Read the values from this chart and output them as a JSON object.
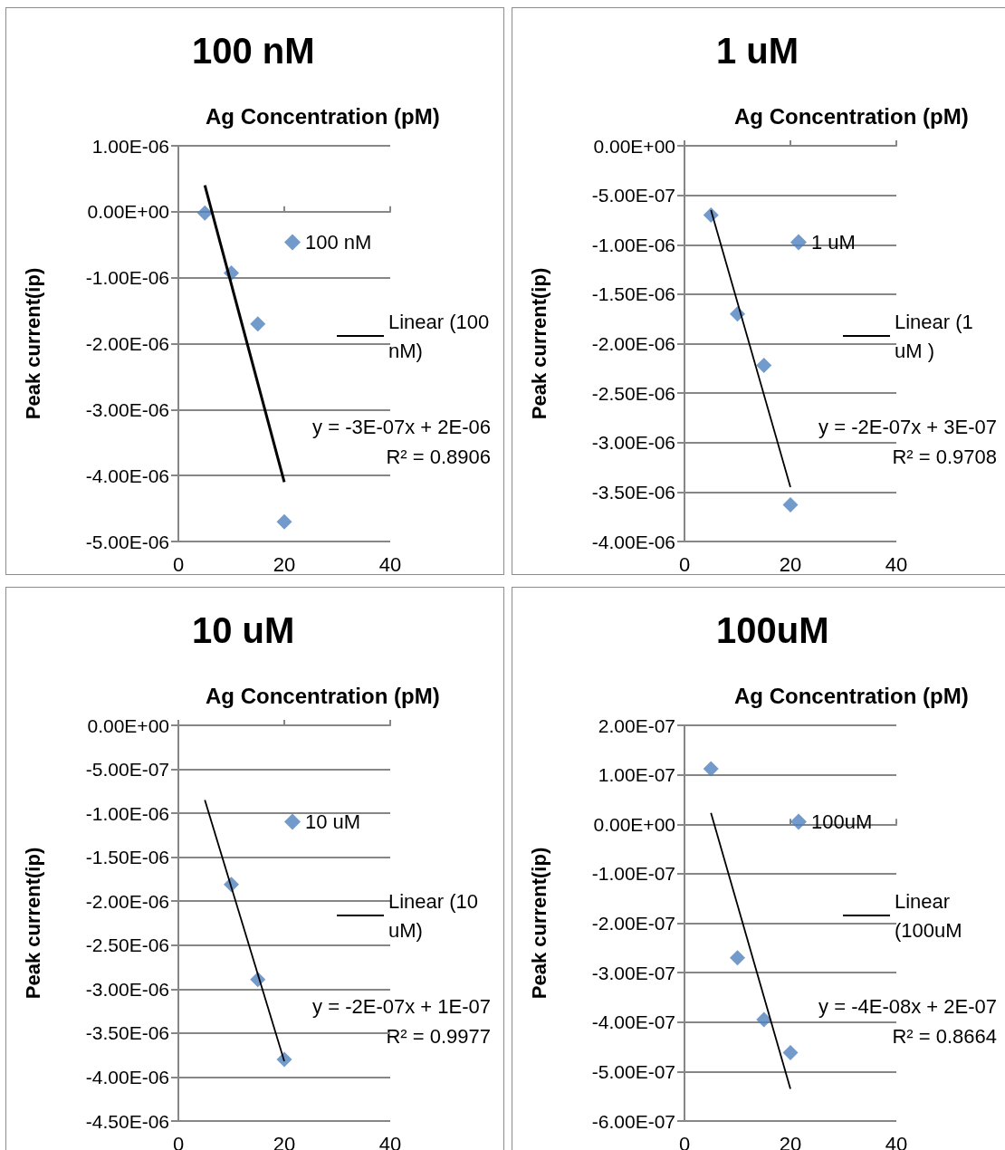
{
  "chart_data": [
    {
      "type": "scatter",
      "title": "100 nM",
      "xlabel": "Ag Concentration (pM)",
      "ylabel": "Peak current(ip)",
      "xlim": [
        0,
        40
      ],
      "xticks": [
        0,
        20,
        40
      ],
      "ylim": [
        -5e-06,
        1e-06
      ],
      "yticks": [
        {
          "value": -5e-06,
          "label": "-5.00E-06"
        },
        {
          "value": -4e-06,
          "label": "-4.00E-06"
        },
        {
          "value": -3e-06,
          "label": "-3.00E-06"
        },
        {
          "value": -2e-06,
          "label": "-2.00E-06"
        },
        {
          "value": -1e-06,
          "label": "-1.00E-06"
        },
        {
          "value": 0,
          "label": "0.00E+00"
        },
        {
          "value": 1e-06,
          "label": "1.00E-06"
        }
      ],
      "grid": "y",
      "legend": "right",
      "marker": "diamond",
      "series": [
        {
          "name": "100 nM",
          "type": "scatter",
          "color": "#4f81bd",
          "x": [
            5,
            10,
            15,
            20
          ],
          "values": [
            -2e-08,
            -9.3e-07,
            -1.7e-06,
            -4.7e-06
          ]
        },
        {
          "name": "Linear (100 nM)",
          "type": "line",
          "marker": "none",
          "color": "#000000",
          "x": [
            5,
            20
          ],
          "values": [
            4e-07,
            -4.1e-06
          ]
        }
      ],
      "annotations": [
        "y = -3E-07x + 2E-06",
        "R² = 0.8906"
      ]
    },
    {
      "type": "scatter",
      "title": "1 uM",
      "xlabel": "Ag Concentration (pM)",
      "ylabel": "Peak current(ip)",
      "xlim": [
        0,
        40
      ],
      "xticks": [
        0,
        20,
        40
      ],
      "ylim": [
        -4e-06,
        0
      ],
      "yticks": [
        {
          "value": -4e-06,
          "label": "-4.00E-06"
        },
        {
          "value": -3.5e-06,
          "label": "-3.50E-06"
        },
        {
          "value": -3e-06,
          "label": "-3.00E-06"
        },
        {
          "value": -2.5e-06,
          "label": "-2.50E-06"
        },
        {
          "value": -2e-06,
          "label": "-2.00E-06"
        },
        {
          "value": -1.5e-06,
          "label": "-1.50E-06"
        },
        {
          "value": -1e-06,
          "label": "-1.00E-06"
        },
        {
          "value": -5e-07,
          "label": "-5.00E-07"
        },
        {
          "value": 0,
          "label": "0.00E+00"
        }
      ],
      "grid": "y",
      "legend": "right",
      "marker": "diamond",
      "series": [
        {
          "name": "1 uM",
          "type": "scatter",
          "color": "#4f81bd",
          "x": [
            5,
            10,
            15,
            20
          ],
          "values": [
            -7e-07,
            -1.7e-06,
            -2.22e-06,
            -3.63e-06
          ]
        },
        {
          "name": "Linear (1 uM )",
          "type": "line",
          "marker": "none",
          "color": "#000000",
          "x": [
            5,
            20
          ],
          "values": [
            -6.5e-07,
            -3.45e-06
          ]
        }
      ],
      "annotations": [
        "y = -2E-07x + 3E-07",
        "R² = 0.9708"
      ]
    },
    {
      "type": "scatter",
      "title": "10 uM",
      "xlabel": "Ag Concentration (pM)",
      "ylabel": "Peak current(ip)",
      "xlim": [
        0,
        40
      ],
      "xticks": [
        0,
        20,
        40
      ],
      "ylim": [
        -4.5e-06,
        0
      ],
      "yticks": [
        {
          "value": -4.5e-06,
          "label": "-4.50E-06"
        },
        {
          "value": -4e-06,
          "label": "-4.00E-06"
        },
        {
          "value": -3.5e-06,
          "label": "-3.50E-06"
        },
        {
          "value": -3e-06,
          "label": "-3.00E-06"
        },
        {
          "value": -2.5e-06,
          "label": "-2.50E-06"
        },
        {
          "value": -2e-06,
          "label": "-2.00E-06"
        },
        {
          "value": -1.5e-06,
          "label": "-1.50E-06"
        },
        {
          "value": -1e-06,
          "label": "-1.00E-06"
        },
        {
          "value": -5e-07,
          "label": "-5.00E-07"
        },
        {
          "value": 0,
          "label": "0.00E+00"
        }
      ],
      "grid": "y",
      "legend": "right",
      "marker": "diamond",
      "series": [
        {
          "name": "10 uM",
          "type": "scatter",
          "color": "#4f81bd",
          "x": [
            10,
            15,
            20
          ],
          "values": [
            -1.81e-06,
            -2.89e-06,
            -3.8e-06
          ]
        },
        {
          "name": "Linear (10 uM)",
          "type": "line",
          "marker": "none",
          "color": "#000000",
          "x": [
            5,
            20
          ],
          "values": [
            -8.5e-07,
            -3.82e-06
          ]
        }
      ],
      "annotations": [
        "y = -2E-07x + 1E-07",
        "R² = 0.9977"
      ]
    },
    {
      "type": "scatter",
      "title": "100uM",
      "xlabel": "Ag Concentration (pM)",
      "ylabel": "Peak current(ip)",
      "xlim": [
        0,
        40
      ],
      "xticks": [
        0,
        20,
        40
      ],
      "ylim": [
        -6e-07,
        2e-07
      ],
      "yticks": [
        {
          "value": -6e-07,
          "label": "-6.00E-07"
        },
        {
          "value": -5e-07,
          "label": "-5.00E-07"
        },
        {
          "value": -4e-07,
          "label": "-4.00E-07"
        },
        {
          "value": -3e-07,
          "label": "-3.00E-07"
        },
        {
          "value": -2e-07,
          "label": "-2.00E-07"
        },
        {
          "value": -1e-07,
          "label": "-1.00E-07"
        },
        {
          "value": 0,
          "label": "0.00E+00"
        },
        {
          "value": 1e-07,
          "label": "1.00E-07"
        },
        {
          "value": 2e-07,
          "label": "2.00E-07"
        }
      ],
      "grid": "y",
      "legend": "right",
      "marker": "diamond",
      "series": [
        {
          "name": "100uM",
          "type": "scatter",
          "color": "#4f81bd",
          "x": [
            5,
            10,
            15,
            20
          ],
          "values": [
            1.12e-07,
            -2.7e-07,
            -3.95e-07,
            -4.62e-07
          ]
        },
        {
          "name": "Linear (100uM",
          "type": "line",
          "marker": "none",
          "color": "#000000",
          "x": [
            5,
            20
          ],
          "values": [
            2.3e-08,
            -5.35e-07
          ]
        }
      ],
      "annotations": [
        "y = -4E-08x + 2E-07",
        "R² = 0.8664"
      ]
    }
  ]
}
